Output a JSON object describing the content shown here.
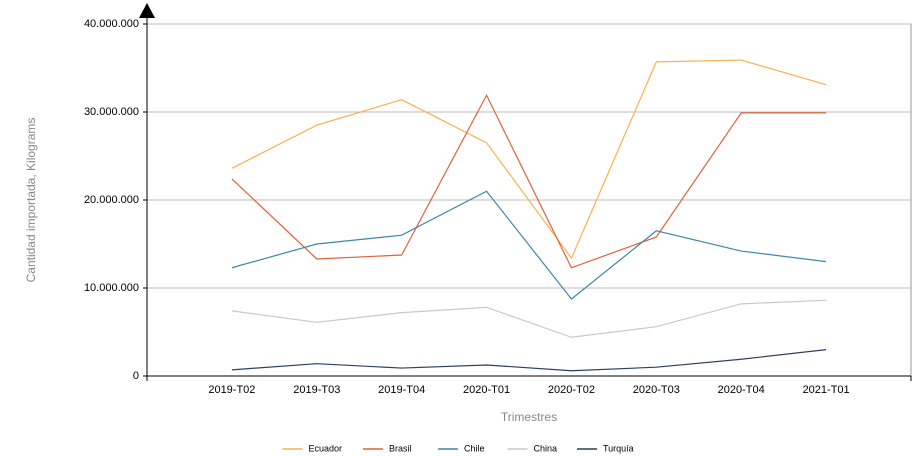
{
  "chart_data": {
    "type": "line",
    "xlabel": "Trimestres",
    "ylabel": "Cantidad importada, Kilograms",
    "categories": [
      "2019-T02",
      "2019-T03",
      "2019-T04",
      "2020-T01",
      "2020-T02",
      "2020-T03",
      "2020-T04",
      "2021-T01"
    ],
    "series": [
      {
        "name": "Ecuador",
        "color": "#f6b24c",
        "values": [
          23600000,
          28500000,
          31400000,
          26500000,
          13400000,
          35700000,
          35900000,
          33100000
        ]
      },
      {
        "name": "Brasil",
        "color": "#e0623b",
        "values": [
          22400000,
          13300000,
          13750000,
          31900000,
          12300000,
          15800000,
          29900000,
          29900000
        ]
      },
      {
        "name": "Chile",
        "color": "#3f87a9",
        "values": [
          12300000,
          15000000,
          16000000,
          21000000,
          8750000,
          16500000,
          14200000,
          13000000
        ]
      },
      {
        "name": "China",
        "color": "#c9c9c9",
        "values": [
          7400000,
          6100000,
          7200000,
          7800000,
          4400000,
          5600000,
          8200000,
          8600000
        ]
      },
      {
        "name": "Turquía",
        "color": "#2d3f62",
        "values": [
          700000,
          1400000,
          900000,
          1250000,
          600000,
          1000000,
          1900000,
          3000000
        ]
      }
    ],
    "ylim": [
      0,
      40000000
    ],
    "yticks": [
      0,
      {
        "value": 10000000,
        "label": "10.000.000"
      },
      {
        "value": 20000000,
        "label": "20.000.000"
      },
      {
        "value": 30000000,
        "label": "30.000.000"
      },
      {
        "value": 40000000,
        "label": "40.000.000"
      }
    ],
    "grid": true,
    "legend": "bottom"
  }
}
